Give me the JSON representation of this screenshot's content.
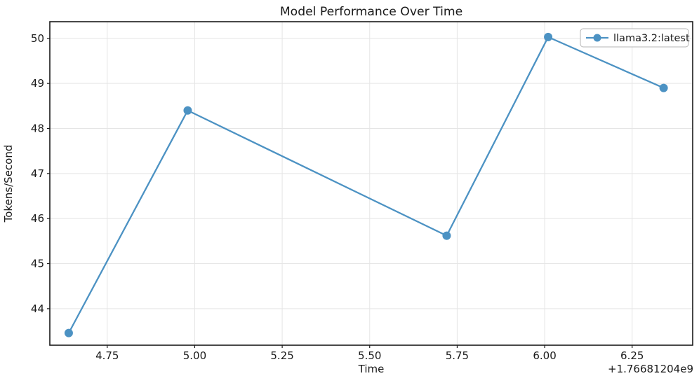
{
  "chart_data": {
    "type": "line",
    "title": "Model Performance Over Time",
    "xlabel": "Time",
    "ylabel": "Tokens/Second",
    "x_offset_text": "+1.76681204e9",
    "series": [
      {
        "name": "llama3.2:latest",
        "color": "#4C92C3",
        "marker": "circle",
        "x": [
          4.64,
          4.98,
          5.72,
          6.01,
          6.34
        ],
        "y": [
          43.46,
          48.4,
          45.62,
          50.03,
          48.9
        ]
      }
    ],
    "x_ticks": [
      4.75,
      5.0,
      5.25,
      5.5,
      5.75,
      6.0,
      6.25
    ],
    "x_tick_labels": [
      "4.75",
      "5.00",
      "5.25",
      "5.50",
      "5.75",
      "6.00",
      "6.25"
    ],
    "y_ticks": [
      44,
      45,
      46,
      47,
      48,
      49,
      50
    ],
    "y_tick_labels": [
      "44",
      "45",
      "46",
      "47",
      "48",
      "49",
      "50"
    ],
    "xlim": [
      4.586,
      6.423
    ],
    "ylim": [
      43.19,
      50.37
    ],
    "grid": true,
    "grid_color": "#e5e5e5",
    "axis_color": "#1a1a1a",
    "background_color": "#ffffff",
    "legend_position": "upper right"
  }
}
